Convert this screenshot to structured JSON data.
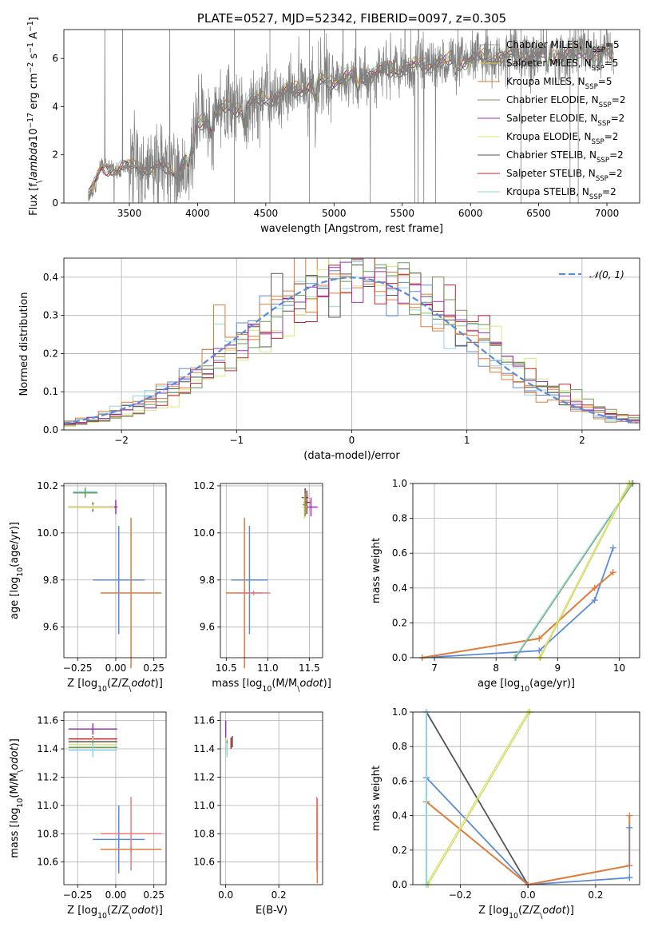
{
  "chart_data": [
    {
      "type": "line",
      "title": "PLATE=0527, MJD=52342, FIBERID=0097, z=0.305",
      "xlabel": "wavelength [Angstrom, rest frame]",
      "ylabel": "Flux [f$_\\lambda$10$^{-17}$ erg cm$^{-2}$ s$^{-1}$ A$^{-1}$]",
      "xlim": [
        3020,
        7240
      ],
      "ylim": [
        0,
        7.2
      ],
      "xticks": [
        "3500",
        "4000",
        "4500",
        "5000",
        "5500",
        "6000",
        "6500",
        "7000"
      ],
      "yticks": [
        "0",
        "2",
        "4",
        "6"
      ],
      "legend_position": "upper right",
      "grid": false,
      "continuum_anchors_x": [
        3200,
        3300,
        3500,
        3700,
        3850,
        3950,
        4000,
        4150,
        4300,
        4500,
        4700,
        4900,
        5100,
        5300,
        5500,
        5700,
        5900,
        6100,
        6300,
        6500,
        6700,
        6900,
        7000
      ],
      "continuum_anchors_y": [
        0.3,
        1.4,
        1.5,
        1.45,
        1.3,
        2.2,
        3.3,
        3.8,
        4.0,
        4.3,
        4.7,
        5.0,
        5.2,
        5.4,
        5.6,
        5.8,
        5.9,
        6.05,
        6.1,
        6.15,
        6.2,
        6.25,
        6.2
      ],
      "series": [
        {
          "name": "Chabrier MILES, N$_{SSP}$=5",
          "color": "#808080",
          "lw": 0.7
        },
        {
          "name": "Salpeter MILES, N$_{SSP}$=5",
          "color": "#e8c84a",
          "lw": 1.0
        },
        {
          "name": "Kroupa MILES, N$_{SSP}$=5",
          "color": "#e07b39",
          "lw": 1.0
        },
        {
          "name": "Chabrier ELODIE, N$_{SSP}$=2",
          "color": "#6f9a5a",
          "lw": 1.0
        },
        {
          "name": "Salpeter ELODIE, N$_{SSP}$=2",
          "color": "#9b30b8",
          "lw": 1.0
        },
        {
          "name": "Kroupa ELODIE, N$_{SSP}$=2",
          "color": "#d8e87a",
          "lw": 1.0
        },
        {
          "name": "Chabrier STELIB, N$_{SSP}$=2",
          "color": "#555555",
          "lw": 1.0
        },
        {
          "name": "Salpeter STELIB, N$_{SSP}$=2",
          "color": "#c0262d",
          "lw": 1.0
        },
        {
          "name": "Kroupa STELIB, N$_{SSP}$=2",
          "color": "#8fd8e0",
          "lw": 1.0
        }
      ]
    },
    {
      "type": "line",
      "xlabel": "(data-model)/error",
      "ylabel": "Normed distribution",
      "xlim": [
        -2.5,
        2.5
      ],
      "ylim": [
        0,
        0.45
      ],
      "xticks": [
        -2,
        -1,
        0,
        1,
        2
      ],
      "yticks": [
        0.0,
        0.1,
        0.2,
        0.3,
        0.4
      ],
      "xticklabels": [
        "−2",
        "−1",
        "0",
        "1",
        "2"
      ],
      "yticklabels": [
        "0.0",
        "0.1",
        "0.2",
        "0.3",
        "0.4"
      ],
      "grid": true,
      "legend_position": "upper right",
      "gaussian": {
        "name": "𝒩(0, 1)",
        "color": "#5b8bd8"
      },
      "hist_colors": [
        "#5b8bd8",
        "#e07b39",
        "#d8e87a",
        "#8fd8e0",
        "#555555",
        "#c0262d",
        "#e07b39",
        "#9b30b8",
        "#6f9a5a"
      ]
    },
    {
      "type": "scatter",
      "xlabel": "Z [log$_{10}$(Z/Z$_\\odot$)]",
      "ylabel": "age  [log$_{10}$(age/yr)]",
      "xlim": [
        -0.34,
        0.33
      ],
      "ylim": [
        9.47,
        10.21
      ],
      "xticks": [
        -0.25,
        0.0,
        0.25
      ],
      "xticklabels": [
        "−0.25",
        "0.00",
        "0.25"
      ],
      "yticks": [
        9.6,
        9.8,
        10.0,
        10.2
      ],
      "yticklabels": [
        "9.6",
        "9.8",
        "10.0",
        "10.2"
      ],
      "grid": true,
      "points": [
        {
          "x": 0.02,
          "y": 9.8,
          "xe": 0.17,
          "ye": 0.23,
          "color": "#5b8bd8"
        },
        {
          "x": 0.1,
          "y": 9.745,
          "xe": 0.2,
          "ye": 0.32,
          "color": "#e07b39"
        },
        {
          "x": -0.2,
          "y": 10.175,
          "xe": 0.08,
          "ye": 0.02,
          "color": "#8fd8e0"
        },
        {
          "x": -0.2,
          "y": 10.17,
          "xe": 0.08,
          "ye": 0.02,
          "color": "#6f9a5a"
        },
        {
          "x": -0.15,
          "y": 10.11,
          "xe": 0.16,
          "ye": 0.02,
          "color": "#555555"
        },
        {
          "x": -0.15,
          "y": 10.11,
          "xe": 0.16,
          "ye": 0.01,
          "color": "#c0262d"
        },
        {
          "x": -0.15,
          "y": 10.11,
          "xe": 0.16,
          "ye": 0.01,
          "color": "#d8e87a"
        },
        {
          "x": 0.0,
          "y": 10.11,
          "xe": 0.01,
          "ye": 0.03,
          "color": "#9b30b8"
        }
      ]
    },
    {
      "type": "scatter",
      "xlabel": "mass [log$_{10}$(M/M$_\\odot$)]",
      "ylabel": "",
      "xlim": [
        10.43,
        11.66
      ],
      "ylim": [
        9.47,
        10.21
      ],
      "xticks": [
        10.5,
        11.0,
        11.5
      ],
      "xticklabels": [
        "10.5",
        "11.0",
        "11.5"
      ],
      "yticks": [
        9.6,
        9.8,
        10.0,
        10.2
      ],
      "yticklabels": [
        "9.6",
        "9.8",
        "10.0",
        "10.2"
      ],
      "grid": true,
      "points": [
        {
          "x": 10.78,
          "y": 9.8,
          "xe": 0.22,
          "ye": 0.23,
          "color": "#5b8bd8"
        },
        {
          "x": 10.72,
          "y": 9.745,
          "xe": 0.22,
          "ye": 0.32,
          "color": "#e07b39"
        },
        {
          "x": 10.83,
          "y": 9.745,
          "xe": 0.2,
          "ye": 0.01,
          "color": "#e87b80"
        },
        {
          "x": 11.52,
          "y": 10.11,
          "xe": 0.08,
          "ye": 0.04,
          "color": "#9b30b8"
        },
        {
          "x": 11.45,
          "y": 10.15,
          "xe": 0.04,
          "ye": 0.04,
          "color": "#555555"
        },
        {
          "x": 11.47,
          "y": 10.13,
          "xe": 0.04,
          "ye": 0.05,
          "color": "#c0262d"
        },
        {
          "x": 11.44,
          "y": 10.11,
          "xe": 0.03,
          "ye": 0.05,
          "color": "#d8e87a"
        },
        {
          "x": 11.45,
          "y": 10.12,
          "xe": 0.03,
          "ye": 0.05,
          "color": "#6f9a5a"
        }
      ]
    },
    {
      "type": "line",
      "xlabel": "age  [log$_{10}$(age/yr)]",
      "ylabel": "mass weight",
      "xlim": [
        6.65,
        10.33
      ],
      "ylim": [
        0,
        1.0
      ],
      "xticks": [
        7,
        8,
        9,
        10
      ],
      "xticklabels": [
        "7",
        "8",
        "9",
        "10"
      ],
      "yticks": [
        0.0,
        0.2,
        0.4,
        0.6,
        0.8,
        1.0
      ],
      "yticklabels": [
        "0.0",
        "0.2",
        "0.4",
        "0.6",
        "0.8",
        "1.0"
      ],
      "grid": true,
      "series": [
        {
          "color": "#5b8bd8",
          "x": [
            6.8,
            8.7,
            9.6,
            9.9
          ],
          "y": [
            0.0,
            0.04,
            0.33,
            0.63
          ],
          "lw": 1.8
        },
        {
          "color": "#e07b39",
          "x": [
            6.8,
            8.7,
            9.6,
            9.9
          ],
          "y": [
            0.0,
            0.11,
            0.4,
            0.49
          ],
          "lw": 2.0
        },
        {
          "color": "#8fd8e0",
          "x": [
            8.3,
            10.2
          ],
          "y": [
            0.0,
            1.0
          ],
          "lw": 1.4
        },
        {
          "color": "#6f9a5a",
          "x": [
            8.32,
            10.22
          ],
          "y": [
            0.0,
            1.0
          ],
          "lw": 1.0
        },
        {
          "color": "#d8e87a",
          "x": [
            8.7,
            10.15
          ],
          "y": [
            0.0,
            1.0
          ],
          "lw": 1.4
        },
        {
          "color": "#c8c83a",
          "x": [
            8.72,
            10.17
          ],
          "y": [
            0.0,
            1.0
          ],
          "lw": 0.9
        }
      ]
    },
    {
      "type": "scatter",
      "xlabel": "Z [log$_{10}$(Z/Z$_\\odot$)]",
      "ylabel": "mass [log$_{10}$(M/M$_\\odot$)]",
      "xlim": [
        -0.34,
        0.33
      ],
      "ylim": [
        10.44,
        11.66
      ],
      "xticks": [
        -0.25,
        0.0,
        0.25
      ],
      "xticklabels": [
        "−0.25",
        "0.00",
        "0.25"
      ],
      "yticks": [
        10.6,
        10.8,
        11.0,
        11.2,
        11.4,
        11.6
      ],
      "yticklabels": [
        "10.6",
        "10.8",
        "11.0",
        "11.2",
        "11.4",
        "11.6"
      ],
      "grid": true,
      "points": [
        {
          "x": 0.02,
          "y": 10.76,
          "xe": 0.17,
          "ye": 0.24,
          "color": "#5b8bd8"
        },
        {
          "x": 0.1,
          "y": 10.69,
          "xe": 0.2,
          "ye": 0.02,
          "color": "#e07b39"
        },
        {
          "x": 0.1,
          "y": 10.8,
          "xe": 0.2,
          "ye": 0.26,
          "color": "#e87b80"
        },
        {
          "x": -0.15,
          "y": 11.54,
          "xe": 0.16,
          "ye": 0.04,
          "color": "#9b30b8"
        },
        {
          "x": -0.15,
          "y": 11.47,
          "xe": 0.16,
          "ye": 0.02,
          "color": "#c0262d"
        },
        {
          "x": -0.15,
          "y": 11.45,
          "xe": 0.16,
          "ye": 0.02,
          "color": "#555555"
        },
        {
          "x": -0.15,
          "y": 11.43,
          "xe": 0.16,
          "ye": 0.05,
          "color": "#d8e87a"
        },
        {
          "x": -0.15,
          "y": 11.41,
          "xe": 0.16,
          "ye": 0.05,
          "color": "#6f9a5a"
        },
        {
          "x": -0.15,
          "y": 11.39,
          "xe": 0.16,
          "ye": 0.05,
          "color": "#8fd8e0"
        }
      ]
    },
    {
      "type": "scatter",
      "xlabel": "E(B-V)",
      "ylabel": "",
      "xlim": [
        -0.02,
        0.365
      ],
      "ylim": [
        10.44,
        11.66
      ],
      "xticks": [
        0.0,
        0.2
      ],
      "xticklabels": [
        "0.0",
        "0.2"
      ],
      "yticks": [
        10.6,
        10.8,
        11.0,
        11.2,
        11.4,
        11.6
      ],
      "yticklabels": [
        "10.6",
        "10.8",
        "11.0",
        "11.2",
        "11.4",
        "11.6"
      ],
      "grid": true,
      "points": [
        {
          "x": 0.345,
          "y": 10.76,
          "xe": 0.0,
          "ye": 0.24,
          "color": "#5b8bd8"
        },
        {
          "x": 0.345,
          "y": 10.75,
          "xe": 0.0,
          "ye": 0.3,
          "color": "#e07b39"
        },
        {
          "x": 0.343,
          "y": 10.8,
          "xe": 0.0,
          "ye": 0.26,
          "color": "#e87b80"
        },
        {
          "x": 0.0,
          "y": 11.54,
          "xe": 0.0,
          "ye": 0.06,
          "color": "#9b30b8"
        },
        {
          "x": 0.02,
          "y": 11.44,
          "xe": 0.0,
          "ye": 0.04,
          "color": "#c0262d"
        },
        {
          "x": 0.025,
          "y": 11.45,
          "xe": 0.0,
          "ye": 0.04,
          "color": "#555555"
        },
        {
          "x": 0.005,
          "y": 11.43,
          "xe": 0.0,
          "ye": 0.05,
          "color": "#d8e87a"
        },
        {
          "x": 0.005,
          "y": 11.41,
          "xe": 0.0,
          "ye": 0.05,
          "color": "#6f9a5a"
        },
        {
          "x": 0.005,
          "y": 11.39,
          "xe": 0.0,
          "ye": 0.05,
          "color": "#8fd8e0"
        }
      ]
    },
    {
      "type": "line",
      "xlabel": "Z [log$_{10}$(Z/Z$_\\odot$)]",
      "ylabel": "mass weight",
      "xlim": [
        -0.34,
        0.33
      ],
      "ylim": [
        0,
        1.0
      ],
      "xticks": [
        -0.2,
        0.0,
        0.2
      ],
      "xticklabels": [
        "−0.2",
        "0.0",
        "0.2"
      ],
      "yticks": [
        0.0,
        0.2,
        0.4,
        0.6,
        0.8,
        1.0
      ],
      "yticklabels": [
        "0.0",
        "0.2",
        "0.4",
        "0.6",
        "0.8",
        "1.0"
      ],
      "grid": true,
      "series": [
        {
          "color": "#555555",
          "x": [
            -0.3,
            0.0
          ],
          "y": [
            1.0,
            0.0
          ],
          "lw": 1.8
        },
        {
          "color": "#5b8bd8",
          "x": [
            -0.3,
            0.0,
            0.3
          ],
          "y": [
            0.62,
            0.0,
            0.04
          ],
          "lw": 1.8
        },
        {
          "color": "#e07b39",
          "x": [
            -0.3,
            0.0,
            0.3
          ],
          "y": [
            0.48,
            0.0,
            0.11
          ],
          "lw": 2.0
        },
        {
          "color": "#d8e87a",
          "x": [
            -0.3,
            0.0
          ],
          "y": [
            0.0,
            1.0
          ],
          "lw": 1.6
        },
        {
          "color": "#c8c83a",
          "x": [
            -0.295,
            0.005
          ],
          "y": [
            0.0,
            1.0
          ],
          "lw": 0.9
        },
        {
          "color": "#8fd8e0",
          "x": [
            -0.3,
            -0.3
          ],
          "y": [
            0.0,
            1.0
          ],
          "lw": 2.2
        },
        {
          "color": "#e07b39",
          "x": [
            0.3,
            0.3
          ],
          "y": [
            0.11,
            0.4
          ],
          "lw": 2.0
        },
        {
          "color": "#5b8bd8",
          "x": [
            0.3,
            0.3
          ],
          "y": [
            0.04,
            0.33
          ],
          "lw": 1.0
        }
      ]
    }
  ]
}
